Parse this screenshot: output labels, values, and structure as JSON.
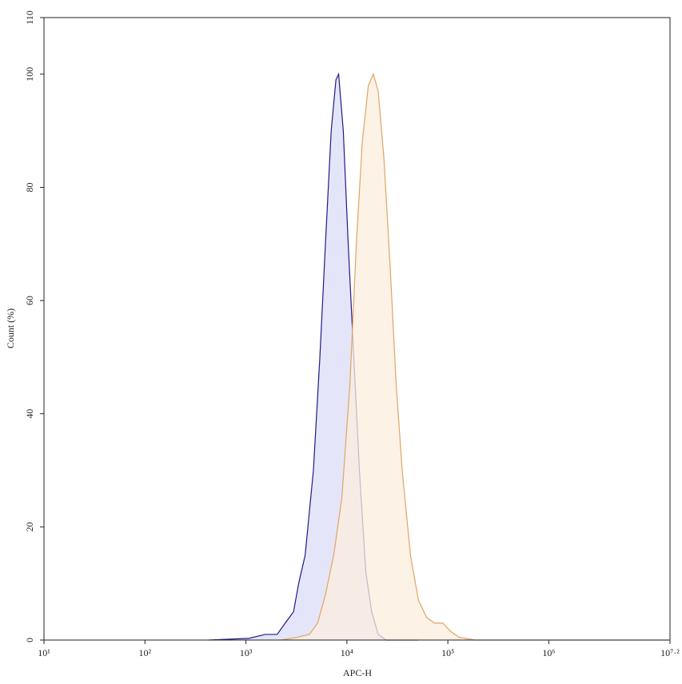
{
  "chart_data": {
    "type": "line",
    "x_label": "APC-H",
    "y_label": "Count (%)",
    "log_x": true,
    "grid": false,
    "xlim": [
      10,
      15848931.92
    ],
    "xticks": [
      {
        "value": 10,
        "label": "10¹"
      },
      {
        "value": 100,
        "label": "10²"
      },
      {
        "value": 1000,
        "label": "10³"
      },
      {
        "value": 10000,
        "label": "10⁴"
      },
      {
        "value": 100000,
        "label": "10⁵"
      },
      {
        "value": 1000000,
        "label": "10⁶"
      },
      {
        "value": 15848931.92,
        "label": "10⁷·²"
      }
    ],
    "ylim": [
      0,
      110
    ],
    "yticks": [
      0,
      20,
      40,
      60,
      80,
      100,
      110
    ],
    "series": [
      {
        "color": "#1c1c8a",
        "fill": "#dcdcf7",
        "x": [
          430,
          1070,
          1550,
          2040,
          2450,
          2960,
          3330,
          3860,
          4660,
          5400,
          6130,
          6990,
          7790,
          8280,
          9210,
          10300,
          11700,
          13300,
          15400,
          17600,
          20400,
          24500,
          51000
        ],
        "values": [
          0,
          0.3,
          1,
          1,
          3,
          5,
          10,
          15,
          30,
          50,
          70,
          90,
          99,
          100,
          90,
          70,
          50,
          30,
          12,
          5,
          1,
          0,
          0
        ]
      },
      {
        "color": "#e0a465",
        "fill": "#fbeedd",
        "x": [
          2240,
          3240,
          4250,
          5130,
          6130,
          7400,
          8900,
          10700,
          12400,
          14200,
          16300,
          18300,
          20400,
          23300,
          27000,
          30800,
          35300,
          42600,
          51200,
          61500,
          74000,
          89000,
          107000,
          129000,
          185000,
          15500000
        ],
        "values": [
          0,
          0.5,
          1,
          3,
          8,
          15,
          25,
          45,
          70,
          88,
          98,
          100,
          97,
          85,
          65,
          45,
          30,
          15,
          7,
          4,
          3,
          3,
          1.5,
          0.5,
          0,
          0
        ]
      }
    ]
  }
}
